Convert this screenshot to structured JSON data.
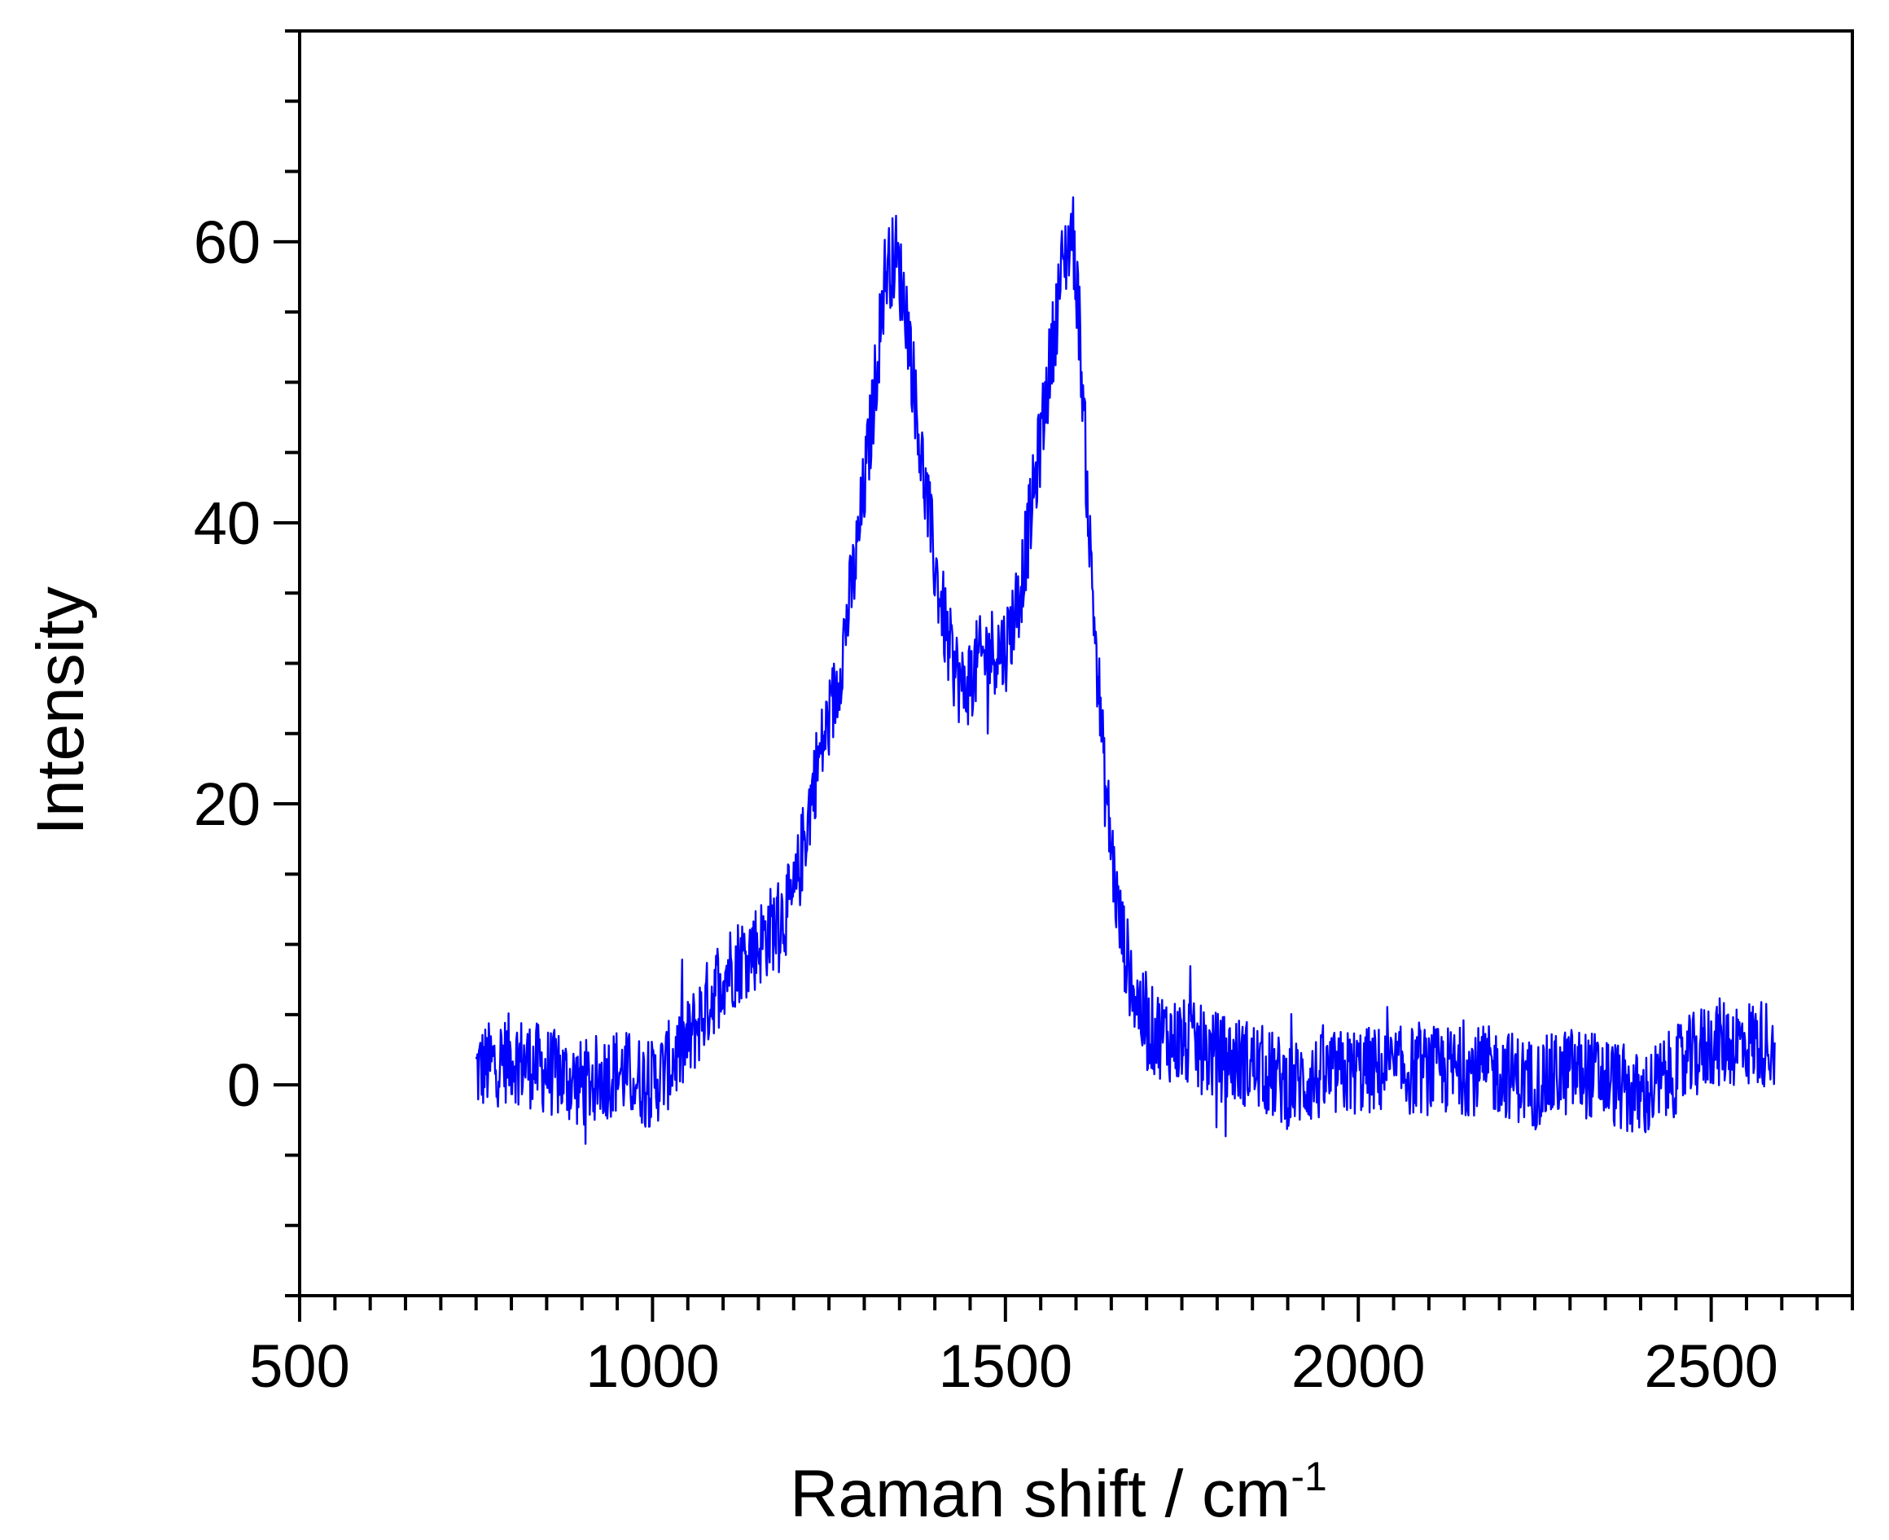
{
  "chart_data": {
    "type": "line",
    "title": "",
    "xlabel": "Raman shift / cm",
    "xlabel_superscript": "-1",
    "ylabel": "Intensity",
    "xlim": [
      500,
      2700
    ],
    "ylim": [
      -15,
      75
    ],
    "x_ticks": [
      500,
      1000,
      1500,
      2000,
      2500
    ],
    "y_ticks": [
      0,
      20,
      40,
      60
    ],
    "grid": false,
    "legend": "none",
    "line_color": "#0000ff",
    "noise_amplitude": 3.2,
    "series": [
      {
        "x": [
          750,
          800,
          850,
          900,
          950,
          1000,
          1050,
          1100,
          1150,
          1200,
          1230,
          1260,
          1290,
          1310,
          1330,
          1345,
          1360,
          1380,
          1400,
          1420,
          1440,
          1460,
          1480,
          1500,
          1520,
          1540,
          1560,
          1580,
          1595,
          1605,
          1620,
          1640,
          1660,
          1680,
          1700,
          1750,
          1800,
          1850,
          1900,
          1950,
          2000,
          2050,
          2100,
          2150,
          2200,
          2250,
          2300,
          2350,
          2400,
          2450,
          2500,
          2550,
          2590
        ],
        "values": [
          1,
          2,
          1,
          0,
          1,
          0,
          3,
          8,
          10,
          13,
          22,
          28,
          38,
          47,
          58,
          59,
          55,
          45,
          37,
          31,
          28,
          30,
          31,
          31,
          35,
          42,
          50,
          58,
          61,
          54,
          38,
          22,
          12,
          7,
          4,
          3,
          2,
          1.5,
          0,
          0.5,
          1,
          1,
          1,
          1,
          1,
          0,
          1,
          0.5,
          -1,
          1,
          3,
          3,
          3
        ]
      }
    ]
  }
}
